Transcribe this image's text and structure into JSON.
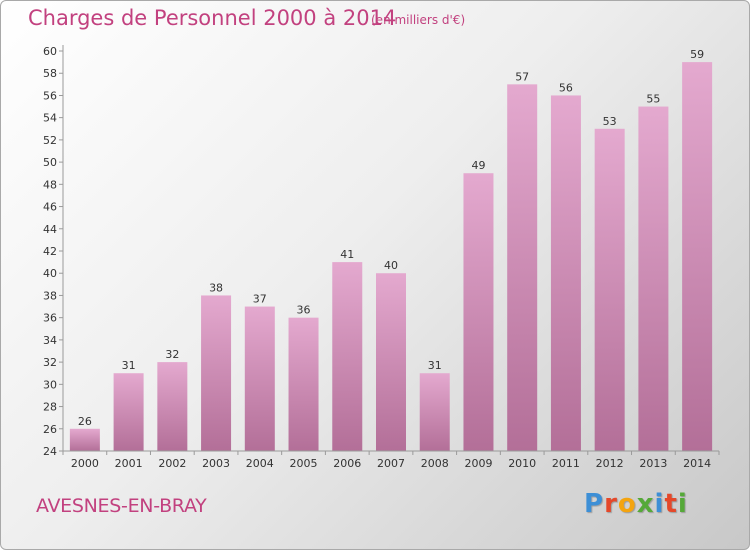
{
  "header": {
    "title": "Charges de Personnel 2000 à 2014",
    "subtitle": "(en milliers d'€)"
  },
  "footer": {
    "location": "AVESNES-EN-BRAY",
    "logo_letters": [
      {
        "ch": "P",
        "color": "#3d8fd6"
      },
      {
        "ch": "r",
        "color": "#e5482a"
      },
      {
        "ch": "o",
        "color": "#f4a40f"
      },
      {
        "ch": "x",
        "color": "#55a938"
      },
      {
        "ch": "i",
        "color": "#3d8fd6"
      },
      {
        "ch": "t",
        "color": "#e5482a"
      },
      {
        "ch": "i",
        "color": "#55a938"
      }
    ]
  },
  "chart_data": {
    "type": "bar",
    "categories": [
      "2000",
      "2001",
      "2002",
      "2003",
      "2004",
      "2005",
      "2006",
      "2007",
      "2008",
      "2009",
      "2010",
      "2011",
      "2012",
      "2013",
      "2014"
    ],
    "values": [
      26,
      31,
      32,
      38,
      37,
      36,
      41,
      40,
      31,
      49,
      57,
      56,
      53,
      55,
      59
    ],
    "data_labels": [
      "26",
      "31",
      "32",
      "38",
      "37",
      "36",
      "41",
      "40",
      "31",
      "49",
      "57",
      "56",
      "53",
      "55",
      "59"
    ],
    "ylim": [
      24,
      60
    ],
    "yticks": [
      24,
      26,
      28,
      30,
      32,
      34,
      36,
      38,
      40,
      42,
      44,
      46,
      48,
      50,
      52,
      54,
      56,
      58,
      60
    ],
    "grid": false,
    "bar_color_top": "#e4a9cf",
    "bar_color_bottom": "#b36f98",
    "axis_color": "#9a9a9a",
    "text_color": "#333333"
  }
}
